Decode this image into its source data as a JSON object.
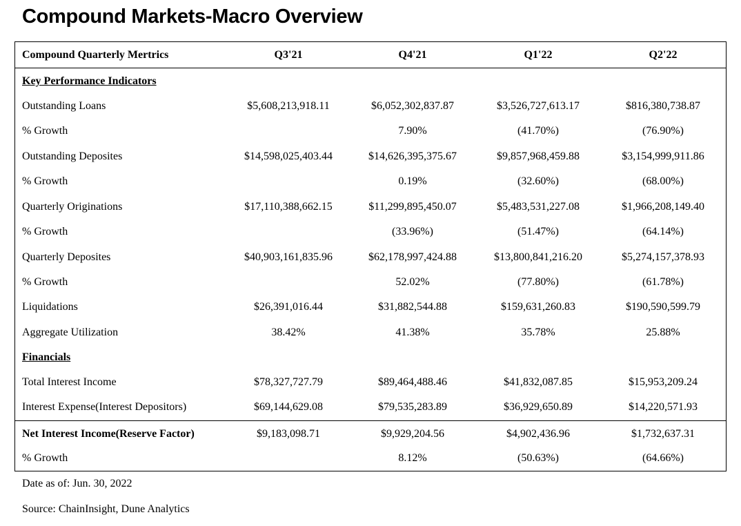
{
  "title": "Compound Markets-Macro Overview",
  "table": {
    "header": {
      "label": "Compound Quarterly Mertrics",
      "columns": [
        "Q3'21",
        "Q4'21",
        "Q1'22",
        "Q2'22"
      ]
    },
    "sections": {
      "kpi": {
        "title": "Key Performance Indicators",
        "rows": [
          {
            "label": "Outstanding Loans",
            "values": [
              "$5,608,213,918.11",
              "$6,052,302,837.87",
              "$3,526,727,613.17",
              "$816,380,738.87"
            ]
          },
          {
            "label": "% Growth",
            "values": [
              "",
              "7.90%",
              "(41.70%)",
              "(76.90%)"
            ]
          },
          {
            "label": "Outstanding Deposites",
            "values": [
              "$14,598,025,403.44",
              "$14,626,395,375.67",
              "$9,857,968,459.88",
              "$3,154,999,911.86"
            ]
          },
          {
            "label": "% Growth",
            "values": [
              "",
              "0.19%",
              "(32.60%)",
              "(68.00%)"
            ]
          },
          {
            "label": "Quarterly Originations",
            "values": [
              "$17,110,388,662.15",
              "$11,299,895,450.07",
              "$5,483,531,227.08",
              "$1,966,208,149.40"
            ]
          },
          {
            "label": "% Growth",
            "values": [
              "",
              "(33.96%)",
              "(51.47%)",
              "(64.14%)"
            ]
          },
          {
            "label": "Quarterly Deposites",
            "values": [
              "$40,903,161,835.96",
              "$62,178,997,424.88",
              "$13,800,841,216.20",
              "$5,274,157,378.93"
            ]
          },
          {
            "label": "% Growth",
            "values": [
              "",
              "52.02%",
              "(77.80%)",
              "(61.78%)"
            ]
          },
          {
            "label": "Liquidations",
            "values": [
              "$26,391,016.44",
              "$31,882,544.88",
              "$159,631,260.83",
              "$190,590,599.79"
            ]
          },
          {
            "label": "Aggregate Utilization",
            "values": [
              "38.42%",
              "41.38%",
              "35.78%",
              "25.88%"
            ]
          }
        ]
      },
      "financials": {
        "title": "Financials",
        "rows": [
          {
            "label": "Total Interest Income",
            "values": [
              "$78,327,727.79",
              "$89,464,488.46",
              "$41,832,087.85",
              "$15,953,209.24"
            ]
          },
          {
            "label": "Interest Expense(Interest Depositors)",
            "values": [
              "$69,144,629.08",
              "$79,535,283.89",
              "$36,929,650.89",
              "$14,220,571.93"
            ]
          }
        ]
      },
      "totals": {
        "rows": [
          {
            "label": "Net Interest Income(Reserve Factor)",
            "values": [
              "$9,183,098.71",
              "$9,929,204.56",
              "$4,902,436.96",
              "$1,732,637.31"
            ]
          },
          {
            "label": "% Growth",
            "values": [
              "",
              "8.12%",
              "(50.63%)",
              "(64.66%)"
            ]
          }
        ]
      }
    }
  },
  "notes": {
    "date": "Date as of: Jun. 30, 2022",
    "source": "Source: ChainInsight, Dune Analytics"
  }
}
